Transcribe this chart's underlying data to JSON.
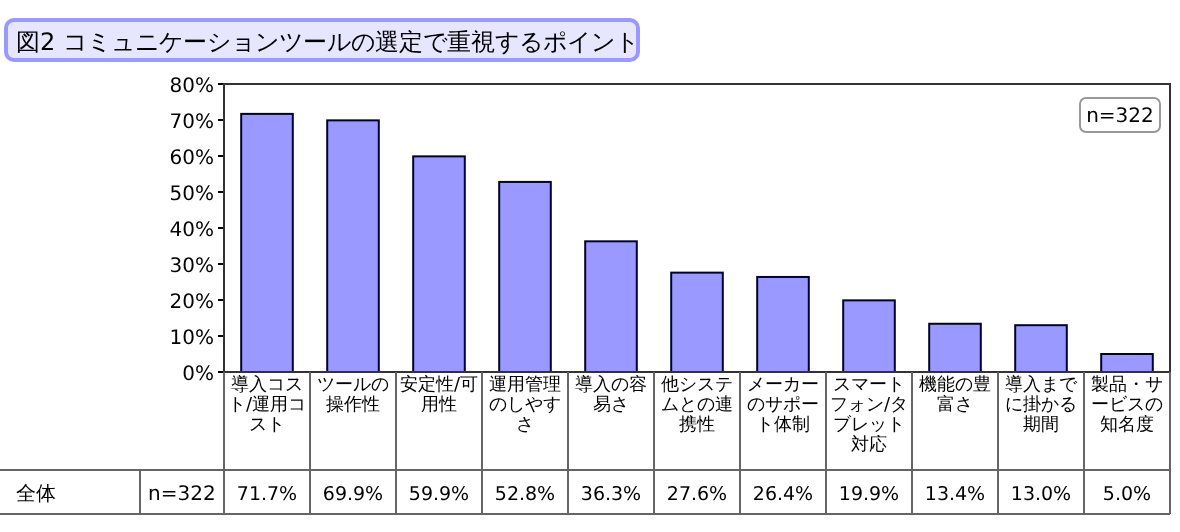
{
  "chart_data": {
    "type": "bar",
    "title": "図2 コミュニケーションツールの選定で重視するポイント",
    "categories": [
      "導入コスト/運用コスト",
      "ツールの操作性",
      "安定性/可用性",
      "運用管理のしやすさ",
      "導入の容易さ",
      "他システムとの連携性",
      "メーカーのサポート体制",
      "スマートフォン/タブレット対応",
      "機能の豊富さ",
      "導入までに掛かる期間",
      "製品・サービスの知名度"
    ],
    "values": [
      71.7,
      69.9,
      59.9,
      52.8,
      36.3,
      27.6,
      26.4,
      19.9,
      13.4,
      13.0,
      5.0
    ],
    "value_labels": [
      "71.7%",
      "69.9%",
      "59.9%",
      "52.8%",
      "36.3%",
      "27.6%",
      "26.4%",
      "19.9%",
      "13.4%",
      "13.0%",
      "5.0%"
    ],
    "color": "#9999ff",
    "ylim": [
      0,
      80
    ],
    "yticks": [
      {
        "value": 0,
        "label": "0%"
      },
      {
        "value": 10,
        "label": "10%"
      },
      {
        "value": 20,
        "label": "20%"
      },
      {
        "value": 30,
        "label": "30%"
      },
      {
        "value": 40,
        "label": "40%"
      },
      {
        "value": 50,
        "label": "50%"
      },
      {
        "value": 60,
        "label": "60%"
      },
      {
        "value": 70,
        "label": "70%"
      },
      {
        "value": 80,
        "label": "80%"
      }
    ],
    "annotations": [
      "n=322",
      "全体",
      "n=322"
    ],
    "grid": false
  }
}
